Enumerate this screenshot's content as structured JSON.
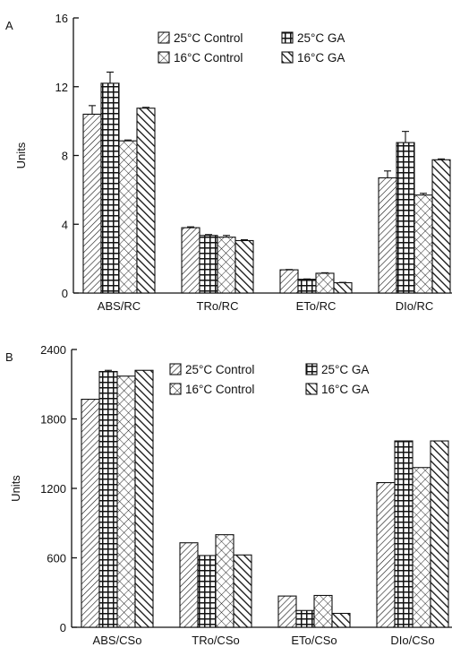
{
  "chart_data": [
    {
      "type": "bar",
      "panel_label": "A",
      "ylabel": "Units",
      "ylim": [
        0,
        16
      ],
      "yticks": [
        0,
        4,
        8,
        12,
        16
      ],
      "categories": [
        "ABS/RC",
        "TRo/RC",
        "ETo/RC",
        "DIo/RC"
      ],
      "legend_position": "top-center",
      "series": [
        {
          "name": "25°C Control",
          "pattern": "diag-right",
          "values": [
            10.4,
            3.8,
            1.35,
            6.7
          ],
          "errors": [
            0.5,
            0.05,
            0.02,
            0.4
          ]
        },
        {
          "name": "25°C GA",
          "pattern": "grid",
          "values": [
            12.2,
            3.35,
            0.8,
            8.75
          ],
          "errors": [
            0.65,
            0.05,
            0.02,
            0.65
          ]
        },
        {
          "name": "16°C Control",
          "pattern": "crosshatch",
          "values": [
            8.85,
            3.25,
            1.15,
            5.7
          ],
          "errors": [
            0.05,
            0.1,
            0.03,
            0.1
          ]
        },
        {
          "name": "16°C GA",
          "pattern": "diag-left-heavy",
          "values": [
            10.75,
            3.05,
            0.6,
            7.75
          ],
          "errors": [
            0.05,
            0.05,
            0.02,
            0.05
          ]
        }
      ]
    },
    {
      "type": "bar",
      "panel_label": "B",
      "ylabel": "Units",
      "ylim": [
        0,
        2400
      ],
      "yticks": [
        0,
        600,
        1200,
        1800,
        2400
      ],
      "categories": [
        "ABS/CSo",
        "TRo/CSo",
        "ETo/CSo",
        "DIo/CSo"
      ],
      "legend_position": "top-center",
      "series": [
        {
          "name": "25°C Control",
          "pattern": "diag-right",
          "values": [
            1970,
            730,
            270,
            1250
          ],
          "errors": [
            0,
            0,
            0,
            0
          ]
        },
        {
          "name": "25°C GA",
          "pattern": "grid",
          "values": [
            2210,
            620,
            145,
            1610
          ],
          "errors": [
            10,
            0,
            0,
            0
          ]
        },
        {
          "name": "16°C Control",
          "pattern": "crosshatch",
          "values": [
            2170,
            800,
            275,
            1380
          ],
          "errors": [
            0,
            0,
            0,
            0
          ]
        },
        {
          "name": "16°C GA",
          "pattern": "diag-left-heavy",
          "values": [
            2220,
            625,
            120,
            1610
          ],
          "errors": [
            0,
            0,
            0,
            0
          ]
        }
      ]
    }
  ]
}
